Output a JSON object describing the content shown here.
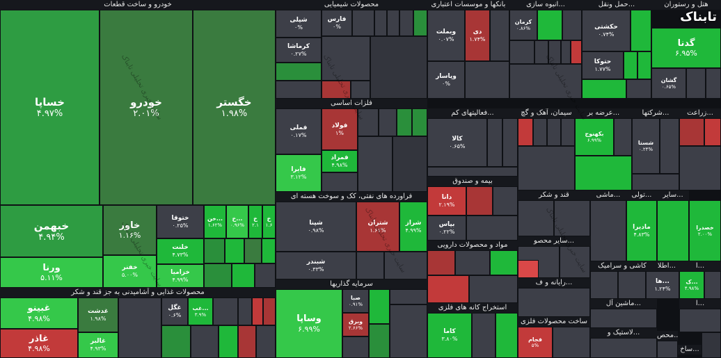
{
  "brand": {
    "logo_text": "تابناک"
  },
  "watermark": "سایت خبری تحلیلی تابناک",
  "sectors": {
    "auto": "خودرو و ساخت قطعات",
    "chem": "محصولات شیمیایی",
    "banks": "بانکها و موسسات اعتباری",
    "mass": "انبوه سازی...",
    "trans": "حمل ونقل...",
    "hotel": "هتل و رستوران",
    "metals": "فلزات اساسی",
    "misc": "فعالیتهای کم...",
    "cement": "سیمان، آهک و گچ",
    "offer": "عرضه بر...",
    "comp": "شرکتها...",
    "agri": "زراعت...",
    "insur": "بیمه و صندوق",
    "sugar": "قند و شکر",
    "machine": "ماشی...",
    "tele": "تولی...",
    "other": "سایر...",
    "oil": "فراورده های نفتی، کک و سوخت هسته ای",
    "pharma": "مواد و محصولات دارویی",
    "othermine": "سایر محصو...",
    "food": "محصولات غذایی و آشامیدنی به جز قند و شکر",
    "invest": "سرمایه گذاریها",
    "mining": "استخراج کانه های فلزی",
    "computer": "رایانه و ف...",
    "ceramic": "کاشی و سرامیک",
    "metalprod": "ساخت محصولات فلزی",
    "machinery": "ماشین آل...",
    "electric": "اطلا...",
    "plastic": "لاستیک و...",
    "const": "ساخ...",
    "misc2": "ا...",
    "misc3": "ا...",
    "mahsol": "محص..."
  },
  "tiles": {
    "khasapa": {
      "sym": "خساپا",
      "pct": "۴.۹۷%"
    },
    "khodro": {
      "sym": "خودرو",
      "pct": "۲.۰۱%"
    },
    "khegostar": {
      "sym": "خگستر",
      "pct": "۱.۹۸%"
    },
    "khbahman": {
      "sym": "خبهمن",
      "pct": "۴.۹۴%"
    },
    "khavar": {
      "sym": "خاور",
      "pct": "۱.۱۶%"
    },
    "khotogha": {
      "sym": "ختوقا",
      "pct": "۰.۲۵%"
    },
    "khan": {
      "sym": "خن...",
      "pct": "۱.۶۲%"
    },
    "kh1": {
      "sym": "خ...",
      "pct": "۰.۹۶%"
    },
    "kh2": {
      "sym": "خ",
      "pct": "۲.۱"
    },
    "kh3": {
      "sym": "خ",
      "pct": "۱.۶"
    },
    "vorna": {
      "sym": "ورنا",
      "pct": "۵.۱۱%"
    },
    "khafnar": {
      "sym": "خفنر",
      "pct": "۵.۰۰%"
    },
    "khalent": {
      "sym": "خلنت",
      "pct": "۴.۷۳%"
    },
    "khazamil": {
      "sym": "خزامیا",
      "pct": "۴.۹۹%"
    },
    "shepli": {
      "sym": "شپلی",
      "pct": "۰%"
    },
    "faras": {
      "sym": "فارس",
      "pct": "۰%"
    },
    "kermasha": {
      "sym": "کرماشا",
      "pct": "۰.۲۷%"
    },
    "vebmelt": {
      "sym": "وبملت",
      "pct": "۰.۰۷%"
    },
    "di": {
      "sym": "دی",
      "pct": "۱.۷۴%"
    },
    "vosapa_bank": {
      "sym": "وپاسار",
      "pct": "۰%"
    },
    "kerman": {
      "sym": "کرمان",
      "pct": "۰.۸۶%"
    },
    "hakeshti": {
      "sym": "حکشتی",
      "pct": "۰.۷۴%"
    },
    "hatoka": {
      "sym": "حتوکا",
      "pct": "۱.۷۷%"
    },
    "ghaza": {
      "sym": "گدنا",
      "pct": "۶.۹۵%"
    },
    "gheshan": {
      "sym": "گشان",
      "pct": "۰.۶۵%"
    },
    "folad": {
      "sym": "فولاد",
      "pct": "۱%"
    },
    "femli": {
      "sym": "فملی",
      "pct": "۰.۱۷%"
    },
    "fameraad": {
      "sym": "فمراد",
      "pct": "۴.۹۸%"
    },
    "fayra": {
      "sym": "فایرا",
      "pct": "۳.۱۲%"
    },
    "kala": {
      "sym": "کالا",
      "pct": "۰.۶۵%"
    },
    "bakhunj": {
      "sym": "بکهنوج",
      "pct": "۶.۹۹%"
    },
    "shasta": {
      "sym": "شستا",
      "pct": "۰.۲۴%"
    },
    "data": {
      "sym": "دانا",
      "pct": "۲.۱۹%"
    },
    "bimas": {
      "sym": "بپاس",
      "pct": "۰.۲۲%"
    },
    "madira": {
      "sym": "مادیرا",
      "pct": "۴.۸۳%"
    },
    "khasra": {
      "sym": "خصدرا",
      "pct": "۲.۰۰%"
    },
    "shepna": {
      "sym": "شپنا",
      "pct": "۰.۹۸%"
    },
    "shetran": {
      "sym": "شتران",
      "pct": "۱.۶۱%"
    },
    "shiraz": {
      "sym": "شراز",
      "pct": "۴.۹۹%"
    },
    "shebandar": {
      "sym": "شبندر",
      "pct": "۰.۳۳%"
    },
    "vasapa": {
      "sym": "وساپا",
      "pct": "۶.۹۹%"
    },
    "saba": {
      "sym": "صبا",
      "pct": "۰.۹۱%"
    },
    "vabarq": {
      "sym": "وبرق",
      "pct": "۲.۶۶%"
    },
    "kama": {
      "sym": "کاما",
      "pct": "۳.۸۰%"
    },
    "fajam": {
      "sym": "فجام",
      "pct": "۵%"
    },
    "ghebina": {
      "sym": "غبینو",
      "pct": "۴.۹۸%"
    },
    "ghadast": {
      "sym": "غدشت",
      "pct": "۱.۹۸%"
    },
    "ghazar": {
      "sym": "غاذر",
      "pct": "۴.۹۸%"
    },
    "ghaber": {
      "sym": "غالبر",
      "pct": "۴.۹۳%"
    },
    "ghegl": {
      "sym": "غگل",
      "pct": "۰.۶%"
    },
    "ghab": {
      "sym": "غب...",
      "pct": "۳.۹%"
    },
    "hava": {
      "sym": "ها...",
      "pct": "۱.۲۴%"
    },
    "keta": {
      "sym": "ک...",
      "pct": "۴.۹۸%"
    }
  }
}
